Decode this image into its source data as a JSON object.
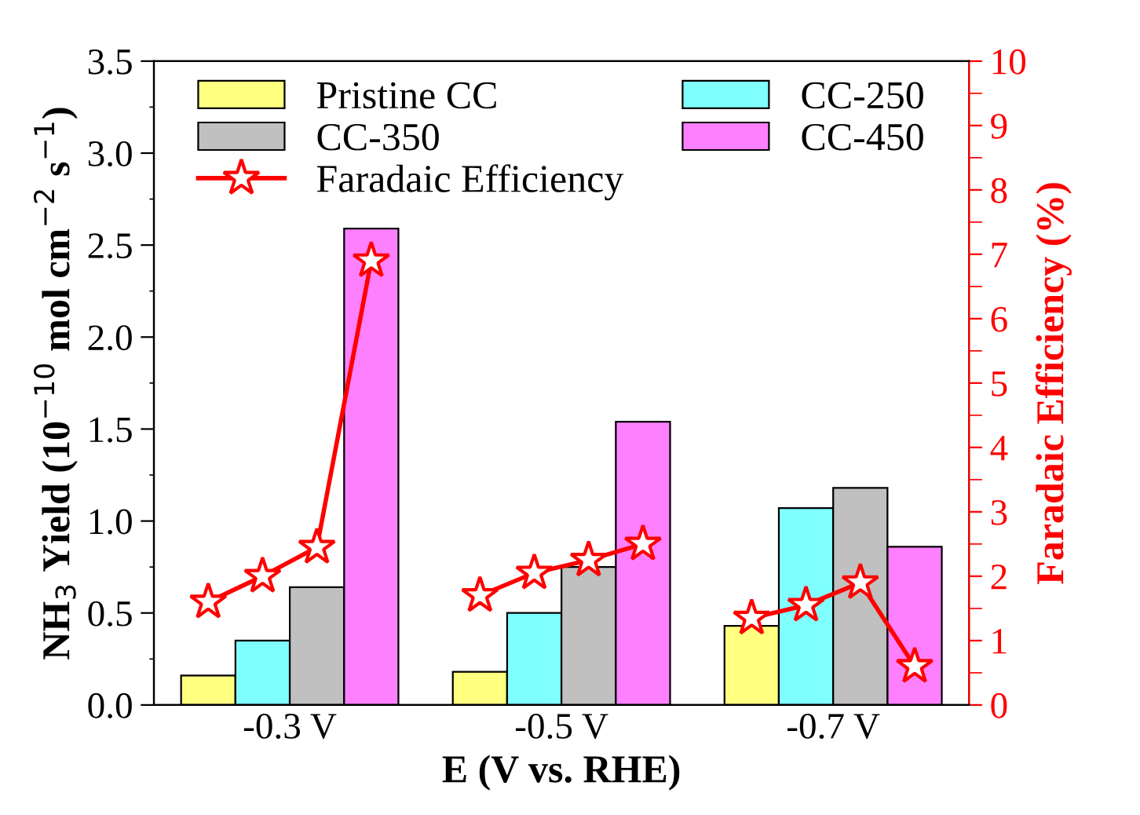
{
  "chart_data": {
    "type": "bar",
    "xlabel": "E (V vs. RHE)",
    "ylabel": "NH$_{3}$ Yield (10$^{−10}$ mol cm$^{−2}$ s$^{−1}$)",
    "y2label": "Faradaic Efficiency (%)",
    "xlim": [
      -0.2,
      -0.8
    ],
    "xticks": [
      {
        "value": -0.3,
        "label": "-0.3 V"
      },
      {
        "value": -0.5,
        "label": "-0.5 V"
      },
      {
        "value": -0.7,
        "label": "-0.7 V"
      }
    ],
    "series": [
      {
        "name": "Pristine CC",
        "color": "#ffff80",
        "x": [
          -0.24,
          -0.44,
          -0.64
        ],
        "values": [
          0.16,
          0.18,
          0.43
        ]
      },
      {
        "name": "CC-250",
        "color": "#80ffff",
        "x": [
          -0.28,
          -0.48,
          -0.68
        ],
        "values": [
          0.35,
          0.5,
          1.07
        ]
      },
      {
        "name": "CC-350",
        "color": "#c0c0c0",
        "x": [
          -0.32,
          -0.52,
          -0.72
        ],
        "values": [
          0.64,
          0.75,
          1.18
        ]
      },
      {
        "name": "CC-450",
        "color": "#ff80ff",
        "x": [
          -0.36,
          -0.56,
          -0.76
        ],
        "values": [
          2.59,
          1.54,
          0.86
        ]
      },
      {
        "name": "Faradaic Efficiency",
        "type": "line",
        "axis": "y2",
        "color": "#ff0000",
        "marker": "star",
        "line_style": "solid",
        "x": [
          -0.24,
          -0.28,
          -0.32,
          -0.36,
          -0.4,
          -0.44,
          -0.48,
          -0.52,
          -0.56,
          -0.6,
          -0.64,
          -0.68,
          -0.72,
          -0.76
        ],
        "values": [
          1.6,
          2.0,
          2.45,
          6.9,
          null,
          1.7,
          2.05,
          2.25,
          2.5,
          null,
          1.35,
          1.55,
          1.9,
          0.6
        ]
      }
    ],
    "ylim": [
      0,
      3.5
    ],
    "yticks": [
      {
        "value": 0,
        "label": "0.0"
      },
      0.5,
      {
        "value": 1,
        "label": "1.0"
      },
      1.5,
      {
        "value": 2,
        "label": "2.0"
      },
      2.5,
      {
        "value": 3,
        "label": "3.0"
      },
      3.5
    ],
    "y2lim": [
      0,
      10
    ],
    "y2ticks": [
      0,
      1,
      2,
      3,
      4,
      5,
      6,
      7,
      8,
      9,
      10
    ],
    "grid": false,
    "legend": "top"
  }
}
